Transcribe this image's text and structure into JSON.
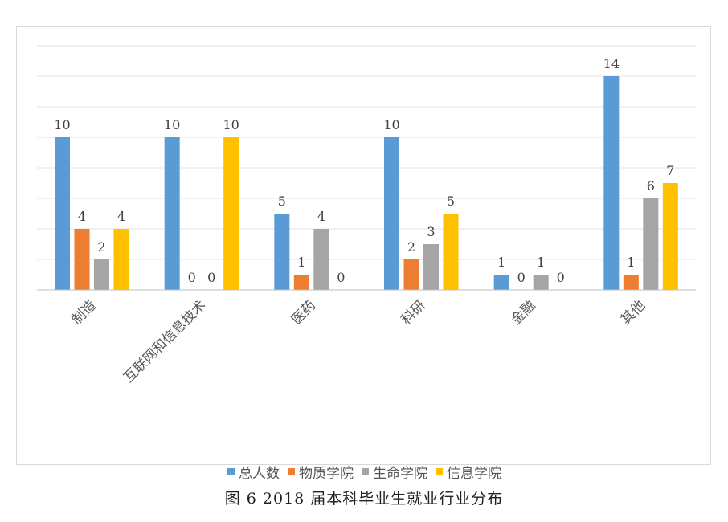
{
  "chart_data": {
    "type": "bar",
    "title": "",
    "xlabel": "",
    "ylabel": "",
    "ylim": [
      0,
      16
    ],
    "ytick_step": 2,
    "grid": true,
    "legend_position": "bottom",
    "categories": [
      "制造",
      "互联网和信息技术",
      "医药",
      "科研",
      "金融",
      "其他"
    ],
    "series": [
      {
        "name": "总人数",
        "color": "#5b9bd5",
        "values": [
          10,
          10,
          5,
          10,
          1,
          14
        ]
      },
      {
        "name": "物质学院",
        "color": "#ed7d31",
        "values": [
          4,
          0,
          1,
          2,
          0,
          1
        ]
      },
      {
        "name": "生命学院",
        "color": "#a5a5a5",
        "values": [
          2,
          0,
          4,
          3,
          1,
          6
        ]
      },
      {
        "name": "信息学院",
        "color": "#ffc000",
        "values": [
          4,
          10,
          0,
          5,
          0,
          7
        ]
      }
    ]
  },
  "caption": "图 6 2018 届本科毕业生就业行业分布"
}
